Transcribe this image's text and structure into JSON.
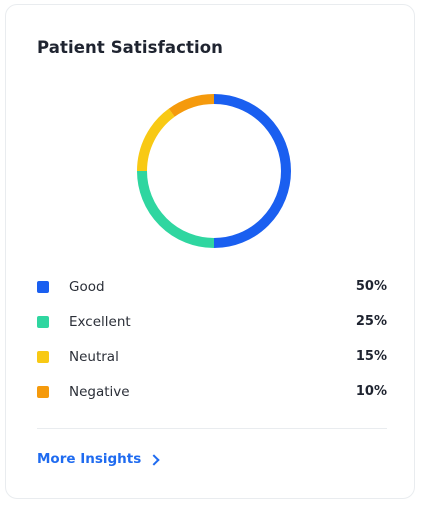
{
  "card": {
    "title": "Patient Satisfaction"
  },
  "chart_data": {
    "type": "pie",
    "title": "",
    "donut": true,
    "categories": [
      "Good",
      "Excellent",
      "Neutral",
      "Negative"
    ],
    "values": [
      50,
      25,
      15,
      10
    ],
    "value_labels": [
      "50%",
      "25%",
      "15%",
      "10%"
    ],
    "colors": [
      "#1a5ff0",
      "#2fd6a0",
      "#f8c914",
      "#f59a0c"
    ],
    "start_category": "Negative",
    "direction": "clockwise",
    "legend_placement": "bottom"
  },
  "footer": {
    "more_label": "More Insights",
    "more_icon": "chevron-right-icon"
  }
}
